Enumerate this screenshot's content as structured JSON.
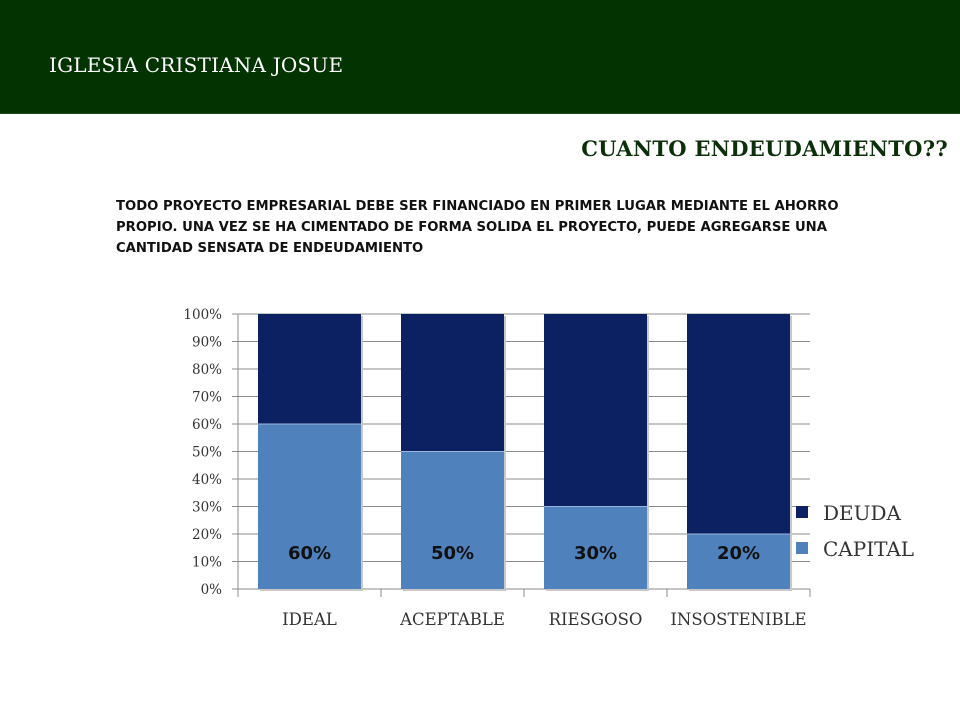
{
  "header": {
    "title": "IGLESIA CRISTIANA JOSUE"
  },
  "slide": {
    "title": "CUANTO ENDEUDAMIENTO??",
    "body": "TODO PROYECTO EMPRESARIAL DEBE SER FINANCIADO EN PRIMER LUGAR MEDIANTE EL AHORRO PROPIO. UNA VEZ SE HA CIMENTADO DE FORMA SOLIDA EL PROYECTO, PUEDE AGREGARSE UNA CANTIDAD SENSATA DE ENDEUDAMIENTO"
  },
  "chart_data": {
    "type": "bar",
    "stacked": true,
    "percent": true,
    "categories": [
      "IDEAL",
      "ACEPTABLE",
      "RIESGOSO",
      "INSOSTENIBLE"
    ],
    "series": [
      {
        "name": "CAPITAL",
        "values": [
          60,
          50,
          30,
          20
        ],
        "color": "#4f81bd"
      },
      {
        "name": "DEUDA",
        "values": [
          40,
          50,
          70,
          80
        ],
        "color": "#0b2161"
      }
    ],
    "data_labels": [
      "60%",
      "50%",
      "30%",
      "20%"
    ],
    "legend_order": [
      "DEUDA",
      "CAPITAL"
    ],
    "y_ticks": [
      "0%",
      "10%",
      "20%",
      "30%",
      "40%",
      "50%",
      "60%",
      "70%",
      "80%",
      "90%",
      "100%"
    ],
    "ylim": [
      0,
      100
    ],
    "grid": true,
    "legend_position": "right"
  }
}
